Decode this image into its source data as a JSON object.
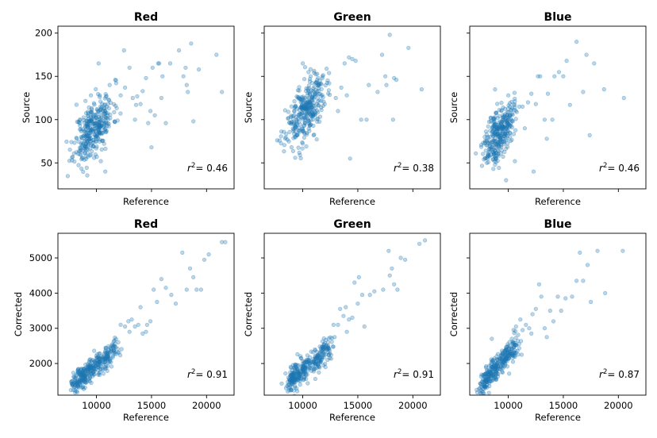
{
  "chart_data": [
    {
      "type": "scatter",
      "title": "Red",
      "xlabel": "Reference",
      "ylabel": "Source",
      "xlim": [
        6500,
        22500
      ],
      "ylim": [
        20,
        208
      ],
      "xticks": [
        10000,
        15000,
        20000
      ],
      "xtick_labels": [
        "",
        "",
        ""
      ],
      "yticks": [
        50,
        100,
        150,
        200
      ],
      "ytick_labels": [
        "50",
        "100",
        "150",
        "200"
      ],
      "r2_label": "= 0.46",
      "seed": 11,
      "cluster": {
        "x": [
          8000,
          11500
        ],
        "y": [
          52,
          128
        ],
        "n": 340
      },
      "points": [
        [
          10200,
          165
        ],
        [
          11200,
          140
        ],
        [
          11700,
          146
        ],
        [
          12200,
          128
        ],
        [
          12600,
          137
        ],
        [
          13000,
          160
        ],
        [
          13300,
          125
        ],
        [
          13600,
          117
        ],
        [
          13700,
          127
        ],
        [
          14200,
          133
        ],
        [
          14500,
          148
        ],
        [
          14700,
          96
        ],
        [
          14900,
          110
        ],
        [
          15100,
          160
        ],
        [
          15300,
          105
        ],
        [
          15600,
          165
        ],
        [
          15700,
          165
        ],
        [
          15900,
          125
        ],
        [
          16300,
          96
        ],
        [
          16700,
          165
        ],
        [
          15000,
          68
        ],
        [
          17500,
          180
        ],
        [
          17900,
          150
        ],
        [
          18100,
          160
        ],
        [
          18200,
          140
        ],
        [
          18300,
          132
        ],
        [
          18600,
          188
        ],
        [
          18800,
          98
        ],
        [
          19300,
          158
        ],
        [
          20900,
          175
        ],
        [
          21400,
          132
        ],
        [
          10800,
          40
        ],
        [
          10400,
          52
        ],
        [
          9500,
          128
        ],
        [
          12500,
          180
        ],
        [
          14000,
          118
        ],
        [
          16000,
          150
        ],
        [
          13500,
          100
        ]
      ]
    },
    {
      "type": "scatter",
      "title": "Green",
      "xlabel": "Reference",
      "ylabel": "Source",
      "xlim": [
        6500,
        22500
      ],
      "ylim": [
        20,
        208
      ],
      "xticks": [
        10000,
        15000,
        20000
      ],
      "xtick_labels": [
        "",
        "",
        ""
      ],
      "yticks": [
        50,
        100,
        150,
        200
      ],
      "ytick_labels": [
        "",
        "",
        "",
        ""
      ],
      "r2_label": "= 0.38",
      "seed": 23,
      "cluster": {
        "x": [
          8500,
          12000
        ],
        "y": [
          70,
          150
        ],
        "n": 330
      },
      "points": [
        [
          10000,
          165
        ],
        [
          11800,
          150
        ],
        [
          12400,
          142
        ],
        [
          13000,
          125
        ],
        [
          13500,
          137
        ],
        [
          13800,
          165
        ],
        [
          14200,
          172
        ],
        [
          14500,
          170
        ],
        [
          14800,
          168
        ],
        [
          14000,
          128
        ],
        [
          15300,
          100
        ],
        [
          15800,
          100
        ],
        [
          16800,
          132
        ],
        [
          17200,
          175
        ],
        [
          17500,
          150
        ],
        [
          17600,
          140
        ],
        [
          17900,
          198
        ],
        [
          18300,
          148
        ],
        [
          18500,
          146
        ],
        [
          18200,
          100
        ],
        [
          19600,
          183
        ],
        [
          20800,
          135
        ],
        [
          14300,
          55
        ],
        [
          12000,
          118
        ],
        [
          13200,
          110
        ],
        [
          16000,
          140
        ]
      ]
    },
    {
      "type": "scatter",
      "title": "Blue",
      "xlabel": "Reference",
      "ylabel": "Source",
      "xlim": [
        6500,
        22500
      ],
      "ylim": [
        20,
        208
      ],
      "xticks": [
        10000,
        15000,
        20000
      ],
      "xtick_labels": [
        "",
        "",
        ""
      ],
      "yticks": [
        50,
        100,
        150,
        200
      ],
      "ytick_labels": [
        "",
        "",
        "",
        ""
      ],
      "r2_label": "= 0.46",
      "seed": 37,
      "cluster": {
        "x": [
          7800,
          10500
        ],
        "y": [
          50,
          120
        ],
        "n": 320
      },
      "points": [
        [
          8800,
          135
        ],
        [
          10000,
          128
        ],
        [
          10600,
          121
        ],
        [
          11000,
          115
        ],
        [
          11300,
          115
        ],
        [
          11800,
          120
        ],
        [
          12100,
          130
        ],
        [
          12500,
          118
        ],
        [
          12700,
          150
        ],
        [
          12900,
          150
        ],
        [
          13300,
          100
        ],
        [
          13600,
          130
        ],
        [
          14200,
          150
        ],
        [
          14600,
          155
        ],
        [
          15000,
          150
        ],
        [
          15300,
          168
        ],
        [
          15600,
          117
        ],
        [
          16200,
          190
        ],
        [
          16800,
          132
        ],
        [
          17100,
          175
        ],
        [
          17400,
          82
        ],
        [
          17800,
          165
        ],
        [
          18700,
          135
        ],
        [
          20500,
          125
        ],
        [
          12300,
          40
        ],
        [
          9800,
          30
        ],
        [
          10600,
          52
        ],
        [
          13500,
          78
        ],
        [
          14000,
          100
        ],
        [
          11500,
          90
        ]
      ]
    },
    {
      "type": "scatter",
      "title": "Red",
      "xlabel": "Reference",
      "ylabel": "Corrected",
      "xlim": [
        6500,
        22500
      ],
      "ylim": [
        1100,
        5700
      ],
      "xticks": [
        10000,
        15000,
        20000
      ],
      "xtick_labels": [
        "10000",
        "15000",
        "20000"
      ],
      "yticks": [
        2000,
        3000,
        4000,
        5000
      ],
      "ytick_labels": [
        "2000",
        "3000",
        "4000",
        "5000"
      ],
      "r2_label": "= 0.91",
      "seed": 51,
      "trend": {
        "x": [
          8000,
          11800
        ],
        "slope": 0.25,
        "intercept": -560,
        "noise": 160,
        "n": 340
      },
      "points": [
        [
          12200,
          3100
        ],
        [
          12600,
          3050
        ],
        [
          12900,
          3200
        ],
        [
          13200,
          3250
        ],
        [
          13500,
          3050
        ],
        [
          13800,
          3100
        ],
        [
          14200,
          2850
        ],
        [
          14500,
          2900
        ],
        [
          14600,
          3100
        ],
        [
          14900,
          3200
        ],
        [
          15200,
          4100
        ],
        [
          15500,
          3750
        ],
        [
          15900,
          4400
        ],
        [
          16300,
          4150
        ],
        [
          16800,
          3950
        ],
        [
          17200,
          3700
        ],
        [
          17800,
          5150
        ],
        [
          18200,
          4100
        ],
        [
          18500,
          4700
        ],
        [
          18800,
          4450
        ],
        [
          19100,
          4100
        ],
        [
          19500,
          4100
        ],
        [
          19800,
          4950
        ],
        [
          20200,
          5100
        ],
        [
          21400,
          5450
        ],
        [
          21700,
          5450
        ],
        [
          13000,
          2900
        ],
        [
          14000,
          3600
        ]
      ]
    },
    {
      "type": "scatter",
      "title": "Green",
      "xlabel": "Reference",
      "ylabel": "Corrected",
      "xlim": [
        6500,
        22500
      ],
      "ylim": [
        1100,
        5700
      ],
      "xticks": [
        10000,
        15000,
        20000
      ],
      "xtick_labels": [
        "10000",
        "15000",
        "20000"
      ],
      "yticks": [
        2000,
        3000,
        4000,
        5000
      ],
      "ytick_labels": [
        "",
        "",
        "",
        ""
      ],
      "r2_label": "= 0.91",
      "seed": 67,
      "trend": {
        "x": [
          8800,
          12500
        ],
        "slope": 0.245,
        "intercept": -650,
        "noise": 170,
        "n": 330
      },
      "points": [
        [
          12800,
          3100
        ],
        [
          13200,
          3100
        ],
        [
          13400,
          3550
        ],
        [
          13700,
          3350
        ],
        [
          13900,
          3600
        ],
        [
          14200,
          3250
        ],
        [
          14500,
          3300
        ],
        [
          14700,
          4300
        ],
        [
          15100,
          4450
        ],
        [
          15400,
          3950
        ],
        [
          15600,
          3050
        ],
        [
          16100,
          3950
        ],
        [
          16500,
          4050
        ],
        [
          17300,
          4100
        ],
        [
          17800,
          5200
        ],
        [
          17900,
          4500
        ],
        [
          18100,
          4700
        ],
        [
          18300,
          4250
        ],
        [
          18600,
          4100
        ],
        [
          18900,
          5000
        ],
        [
          19300,
          4950
        ],
        [
          20600,
          5400
        ],
        [
          21100,
          5500
        ],
        [
          12900,
          2750
        ],
        [
          14000,
          2900
        ],
        [
          15000,
          3700
        ]
      ]
    },
    {
      "type": "scatter",
      "title": "Blue",
      "xlabel": "Reference",
      "ylabel": "Corrected",
      "xlim": [
        6500,
        22500
      ],
      "ylim": [
        1100,
        5700
      ],
      "xticks": [
        10000,
        15000,
        20000
      ],
      "xtick_labels": [
        "10000",
        "15000",
        "20000"
      ],
      "yticks": [
        2000,
        3000,
        4000,
        5000
      ],
      "ytick_labels": [
        "",
        "",
        "",
        ""
      ],
      "r2_label": "= 0.87",
      "seed": 83,
      "trend": {
        "x": [
          7700,
          10800
        ],
        "slope": 0.35,
        "intercept": -1250,
        "noise": 170,
        "n": 320
      },
      "points": [
        [
          8500,
          2700
        ],
        [
          10700,
          3050
        ],
        [
          11100,
          3250
        ],
        [
          11300,
          2950
        ],
        [
          11600,
          3100
        ],
        [
          11900,
          3000
        ],
        [
          12200,
          3400
        ],
        [
          12500,
          3550
        ],
        [
          12800,
          4250
        ],
        [
          13000,
          3900
        ],
        [
          13300,
          3000
        ],
        [
          13500,
          2750
        ],
        [
          13800,
          3500
        ],
        [
          14100,
          3200
        ],
        [
          14500,
          3900
        ],
        [
          14800,
          3500
        ],
        [
          15200,
          3850
        ],
        [
          15800,
          3900
        ],
        [
          16200,
          4350
        ],
        [
          16500,
          5150
        ],
        [
          16800,
          4350
        ],
        [
          17200,
          4800
        ],
        [
          17500,
          3750
        ],
        [
          18100,
          5200
        ],
        [
          18800,
          4000
        ],
        [
          20400,
          5200
        ],
        [
          12100,
          2850
        ]
      ]
    }
  ]
}
